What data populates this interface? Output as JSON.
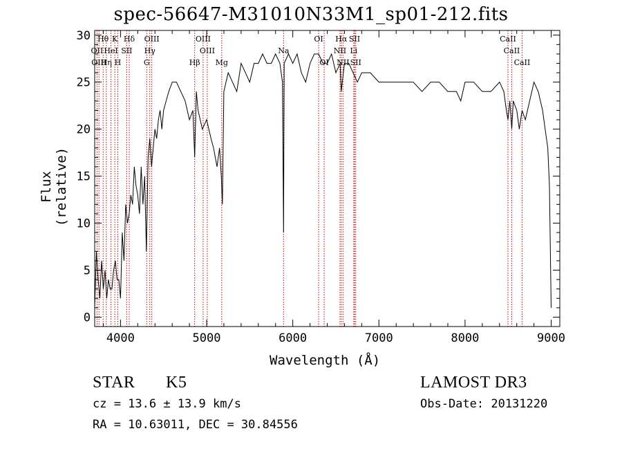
{
  "chart_data": {
    "type": "line",
    "title": "spec-56647-M31010N33M1_sp01-212.fits",
    "xlabel": "Wavelength (Å)",
    "ylabel": "Flux (relative)",
    "xlim": [
      3700,
      9100
    ],
    "ylim": [
      -1,
      30.5
    ],
    "x_ticks": [
      4000,
      5000,
      6000,
      7000,
      8000,
      9000
    ],
    "y_ticks": [
      0,
      5,
      10,
      15,
      20,
      25,
      30
    ],
    "series": [
      {
        "name": "spectrum",
        "x": [
          3700,
          3720,
          3740,
          3760,
          3780,
          3800,
          3820,
          3840,
          3860,
          3880,
          3900,
          3920,
          3940,
          3960,
          3980,
          4000,
          4020,
          4040,
          4060,
          4080,
          4100,
          4120,
          4140,
          4160,
          4180,
          4200,
          4220,
          4240,
          4260,
          4280,
          4300,
          4320,
          4340,
          4360,
          4380,
          4400,
          4420,
          4440,
          4460,
          4480,
          4500,
          4530,
          4560,
          4600,
          4650,
          4700,
          4750,
          4800,
          4840,
          4861,
          4880,
          4900,
          4950,
          5000,
          5050,
          5080,
          5100,
          5120,
          5150,
          5170,
          5183,
          5200,
          5250,
          5300,
          5350,
          5400,
          5450,
          5500,
          5550,
          5600,
          5650,
          5700,
          5750,
          5800,
          5850,
          5880,
          5893,
          5900,
          5950,
          6000,
          6050,
          6100,
          6150,
          6200,
          6250,
          6300,
          6350,
          6400,
          6450,
          6500,
          6550,
          6563,
          6600,
          6650,
          6700,
          6750,
          6800,
          6900,
          7000,
          7100,
          7200,
          7300,
          7400,
          7500,
          7600,
          7700,
          7800,
          7900,
          7950,
          8000,
          8100,
          8200,
          8300,
          8400,
          8450,
          8480,
          8498,
          8520,
          8542,
          8560,
          8600,
          8630,
          8662,
          8700,
          8750,
          8800,
          8850,
          8900,
          8930,
          8960,
          8980,
          9000
        ],
        "values": [
          1,
          7,
          4,
          2,
          6,
          3,
          5,
          2,
          4,
          3,
          3,
          5,
          6,
          4,
          4,
          2,
          9,
          6,
          12,
          10,
          11,
          13,
          12,
          16,
          14,
          13,
          11,
          16,
          12,
          15,
          7,
          17,
          19,
          16,
          18,
          20,
          19,
          21,
          22,
          20,
          22,
          23,
          24,
          25,
          25,
          24,
          23,
          21,
          22,
          17,
          24,
          22,
          20,
          21,
          19,
          18,
          17,
          16,
          18,
          15,
          12,
          24,
          26,
          25,
          24,
          27,
          26,
          25,
          27,
          27,
          28,
          27,
          27,
          28,
          27,
          25,
          9,
          27,
          28,
          27,
          28,
          26,
          25,
          27,
          28,
          28,
          27,
          27,
          28,
          26,
          27,
          24,
          27,
          27,
          26,
          25,
          26,
          26,
          25,
          25,
          25,
          25,
          25,
          24,
          25,
          25,
          24,
          24,
          23,
          25,
          25,
          24,
          24,
          25,
          24,
          22,
          21,
          23,
          20,
          23,
          22,
          20,
          22,
          21,
          23,
          25,
          24,
          22,
          20,
          18,
          14,
          1
        ]
      }
    ],
    "lines": [
      {
        "name": "H-theta",
        "x": 3798,
        "label": "Hθ",
        "row": 0
      },
      {
        "name": "O-II",
        "x": 3727,
        "label": "OII",
        "row": 1
      },
      {
        "name": "O-III-a",
        "x": 3750,
        "label": "OIII",
        "row": 2
      },
      {
        "name": "He-I",
        "x": 3889,
        "label": "HeI",
        "row": 1
      },
      {
        "name": "K",
        "x": 3934,
        "label": "K",
        "row": 0
      },
      {
        "name": "H-eta",
        "x": 3835,
        "label": "Hη",
        "row": 2
      },
      {
        "name": "S-II-a",
        "x": 4072,
        "label": "SII",
        "row": 1
      },
      {
        "name": "H",
        "x": 3968,
        "label": "H",
        "row": 2
      },
      {
        "name": "H-delta",
        "x": 4101,
        "label": "Hδ",
        "row": 0
      },
      {
        "name": "O-III-b",
        "x": 4363,
        "label": "OIII",
        "row": 0
      },
      {
        "name": "H-gamma",
        "x": 4340,
        "label": "Hγ",
        "row": 1
      },
      {
        "name": "G",
        "x": 4304,
        "label": "G",
        "row": 2
      },
      {
        "name": "H-beta",
        "x": 4861,
        "label": "Hβ",
        "row": 2
      },
      {
        "name": "O-III-c",
        "x": 4959,
        "label": "OIII",
        "row": 0
      },
      {
        "name": "O-III-d",
        "x": 5007,
        "label": "OIII",
        "row": 1
      },
      {
        "name": "Mg",
        "x": 5175,
        "label": "Mg",
        "row": 2
      },
      {
        "name": "Na",
        "x": 5893,
        "label": "Na",
        "row": 1
      },
      {
        "name": "O-I",
        "x": 6300,
        "label": "OI",
        "row": 0
      },
      {
        "name": "O-I-b",
        "x": 6364,
        "label": "OI",
        "row": 2
      },
      {
        "name": "H-alpha",
        "x": 6563,
        "label": "Hα",
        "row": 0
      },
      {
        "name": "N-II-a",
        "x": 6548,
        "label": "NII",
        "row": 1
      },
      {
        "name": "N-II-b",
        "x": 6583,
        "label": "NII",
        "row": 2
      },
      {
        "name": "S-II-b",
        "x": 6717,
        "label": "SII",
        "row": 0
      },
      {
        "name": "Li",
        "x": 6708,
        "label": "Li",
        "row": 1
      },
      {
        "name": "S-II-c",
        "x": 6731,
        "label": "SII",
        "row": 2
      },
      {
        "name": "Ca-II-a",
        "x": 8498,
        "label": "CaII",
        "row": 0
      },
      {
        "name": "Ca-II-b",
        "x": 8542,
        "label": "CaII",
        "row": 1
      },
      {
        "name": "Ca-II-c",
        "x": 8662,
        "label": "CaII",
        "row": 2
      }
    ]
  },
  "info": {
    "class_label": "STAR",
    "subclass": "K5",
    "survey": "LAMOST DR3",
    "cz": "cz = 13.6 ± 13.9 km/s",
    "obs_date": "Obs-Date: 20131220",
    "coords": "RA =  10.63011, DEC =  30.84556"
  },
  "colors": {
    "spectrum": "#000000",
    "line_marker": "#c00000",
    "axes": "#000000"
  }
}
